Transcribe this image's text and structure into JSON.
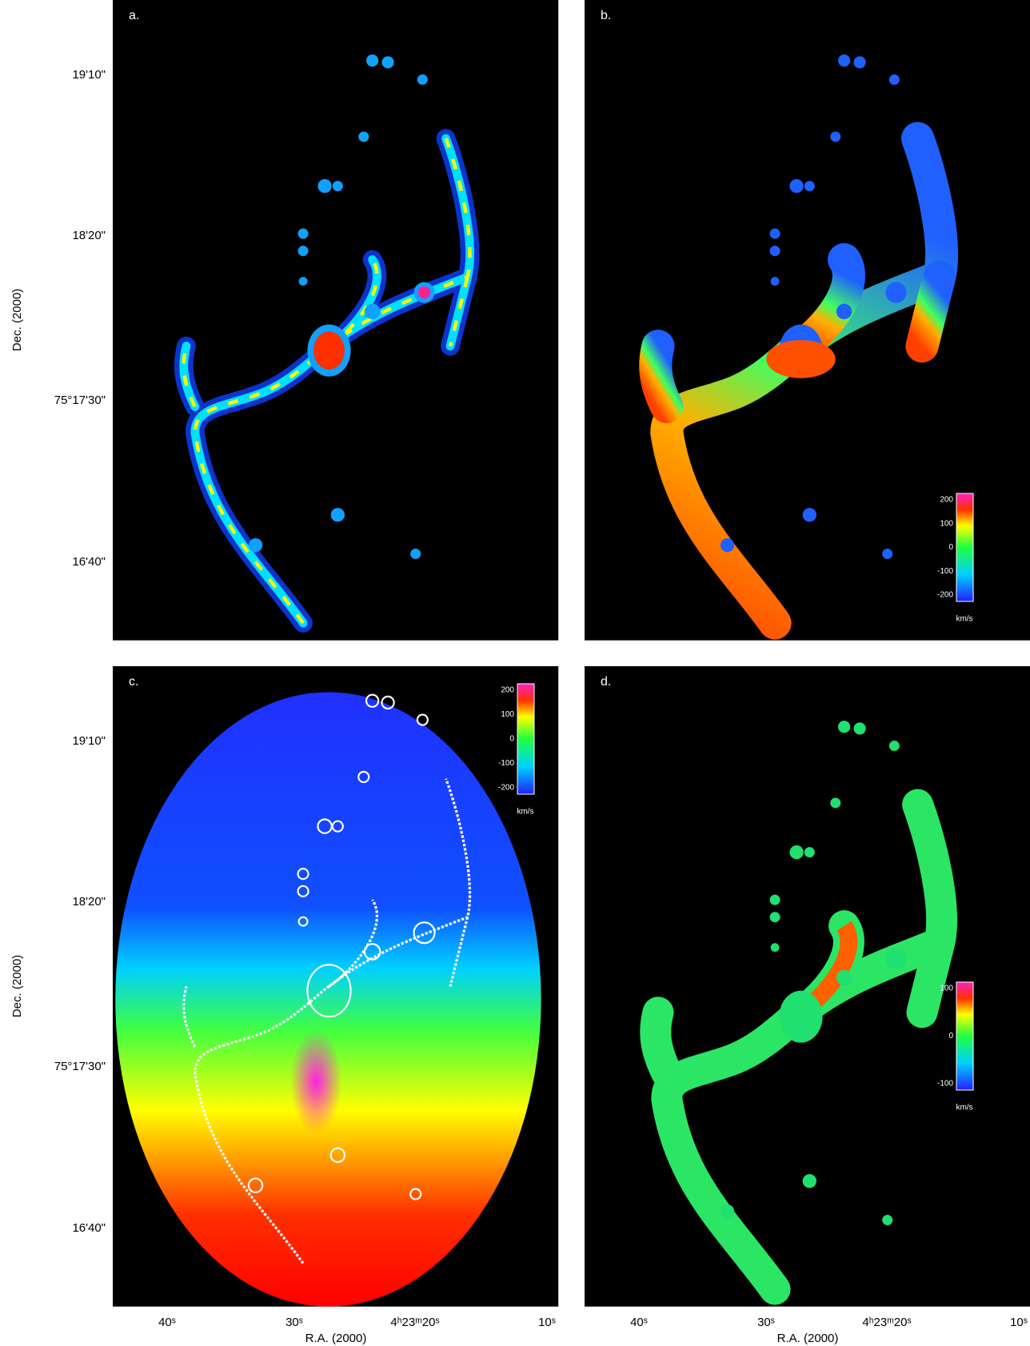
{
  "panels": [
    {
      "label": "a."
    },
    {
      "label": "b."
    },
    {
      "label": "c."
    },
    {
      "label": "d."
    }
  ],
  "axes": {
    "y_label": "Dec. (2000)",
    "y_ticks": [
      "19'10\"",
      "18'20\"",
      "75°17'30\"",
      "16'40\""
    ],
    "x_label": "R.A. (2000)",
    "x_ticks": [
      "40ˢ",
      "30ˢ",
      "4ʰ23ᵐ20ˢ",
      "10ˢ"
    ]
  },
  "colorbars": [
    {
      "panel": "b.",
      "ticks": [
        "200",
        "100",
        "0",
        "-100",
        "-200"
      ],
      "unit": "km/s"
    },
    {
      "panel": "c.",
      "ticks": [
        "200",
        "100",
        "0",
        "-100",
        "-200"
      ],
      "unit": "km/s"
    },
    {
      "panel": "d.",
      "ticks": [
        "100",
        "0",
        "-100"
      ],
      "unit": "km/s"
    }
  ]
}
